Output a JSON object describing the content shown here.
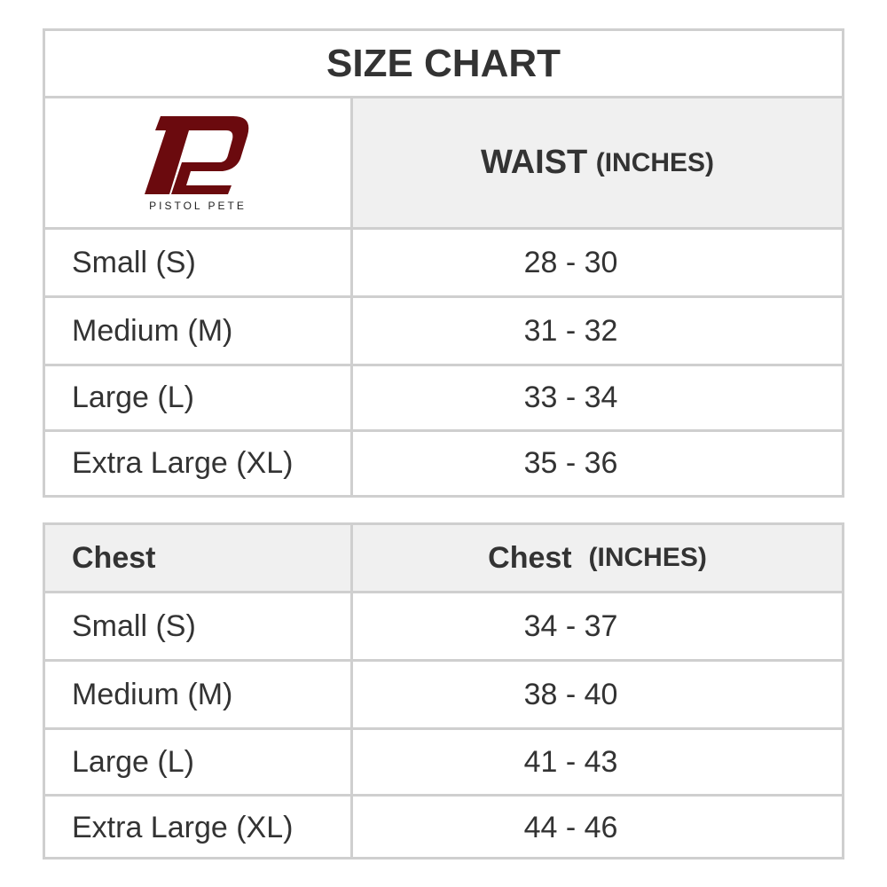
{
  "title": "SIZE CHART",
  "brand": {
    "name": "PISTOL PETE",
    "logo_color": "#6b0a0e"
  },
  "waist": {
    "header_main": "WAIST",
    "header_unit": "(INCHES)",
    "rows": [
      {
        "size": "Small (S)",
        "value": "28 - 30"
      },
      {
        "size": "Medium (M)",
        "value": "31 - 32"
      },
      {
        "size": "Large (L)",
        "value": "33 - 34"
      },
      {
        "size": "Extra Large (XL)",
        "value": "35 - 36"
      }
    ]
  },
  "chest": {
    "header_left": "Chest",
    "header_main": "Chest",
    "header_unit": "(INCHES)",
    "rows": [
      {
        "size": "Small (S)",
        "value": "34 - 37"
      },
      {
        "size": "Medium (M)",
        "value": "38 - 40"
      },
      {
        "size": "Large (L)",
        "value": "41 - 43"
      },
      {
        "size": "Extra Large (XL)",
        "value": "44 - 46"
      }
    ]
  }
}
